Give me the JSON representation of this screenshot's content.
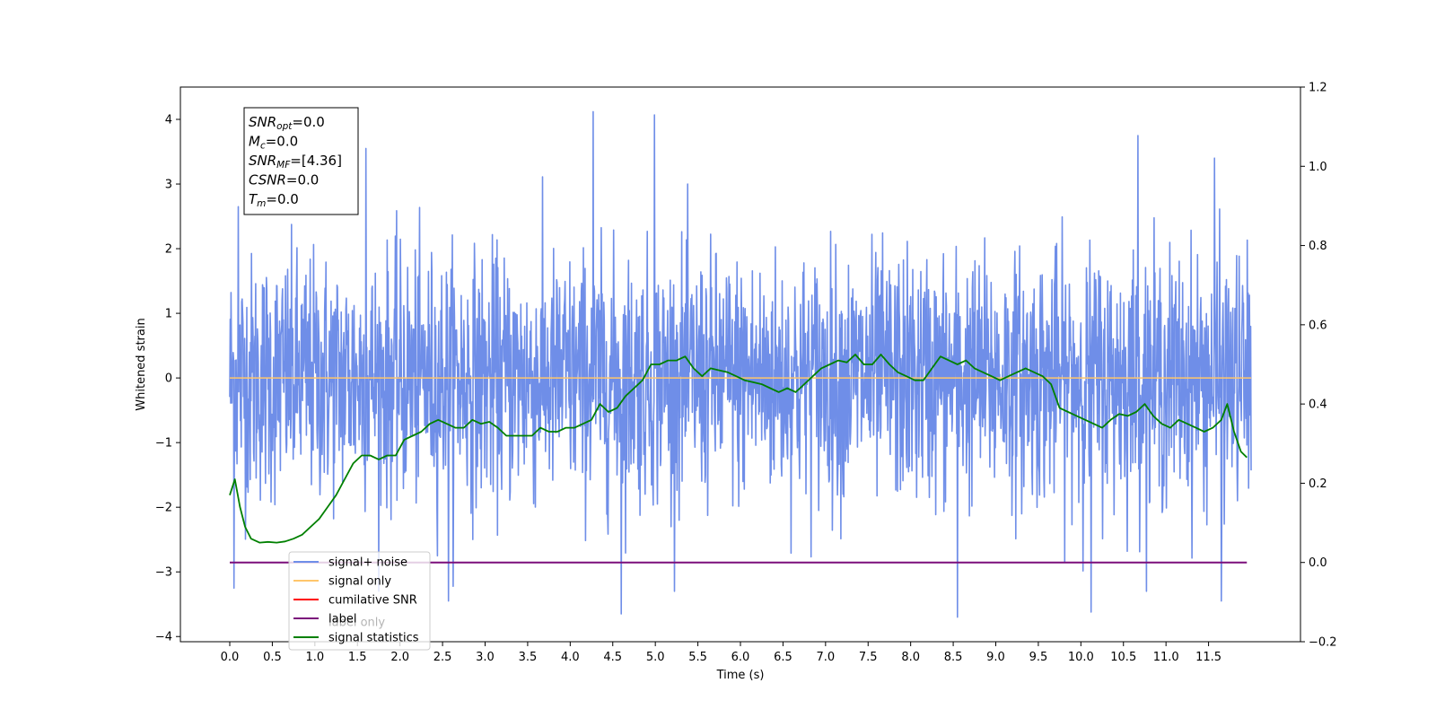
{
  "chart_data": {
    "type": "line",
    "title": "",
    "xlabel": "Time (s)",
    "ylabel": "Whitened strain",
    "y2label": "",
    "xlim": [
      -0.58,
      12.58
    ],
    "ylim": [
      -4.08,
      4.5
    ],
    "y2lim": [
      -0.2,
      1.2
    ],
    "x_ticks": [
      0.0,
      0.5,
      1.0,
      1.5,
      2.0,
      2.5,
      3.0,
      3.5,
      4.0,
      4.5,
      5.0,
      5.5,
      6.0,
      6.5,
      7.0,
      7.5,
      8.0,
      8.5,
      9.0,
      9.5,
      10.0,
      10.5,
      11.0,
      11.5
    ],
    "x_tick_labels": [
      "0.0",
      "0.5",
      "1.0",
      "1.5",
      "2.0",
      "2.5",
      "3.0",
      "3.5",
      "4.0",
      "4.5",
      "5.0",
      "5.5",
      "6.0",
      "6.5",
      "7.0",
      "7.5",
      "8.0",
      "8.5",
      "9.0",
      "9.5",
      "10.0",
      "10.5",
      "11.0",
      "11.5"
    ],
    "y_ticks": [
      -4,
      -3,
      -2,
      -1,
      0,
      1,
      2,
      3,
      4
    ],
    "y_tick_labels": [
      "−4",
      "−3",
      "−2",
      "−1",
      "0",
      "1",
      "2",
      "3",
      "4"
    ],
    "y2_ticks": [
      -0.2,
      0.0,
      0.2,
      0.4,
      0.6,
      0.8,
      1.0,
      1.2
    ],
    "y2_tick_labels": [
      "−0.2",
      "0.0",
      "0.2",
      "0.4",
      "0.6",
      "0.8",
      "1.0",
      "1.2"
    ],
    "grid": false,
    "legend_placement": "lower-left",
    "legend": [
      {
        "label": "signal+ noise",
        "color": "#6f8ee8"
      },
      {
        "label": "signal only",
        "color": "#ffc66b"
      },
      {
        "label": "cumilative SNR",
        "color": "#ff0000"
      },
      {
        "label": "label",
        "color": "#7b0f7b"
      },
      {
        "label": "signal statistics",
        "color": "#008000"
      }
    ],
    "hidden_legend_text": "label only",
    "annotation_box": [
      {
        "base": "SNR",
        "sub": "opt",
        "rest": "=0.0"
      },
      {
        "base": "M",
        "sub": "c",
        "rest": "=0.0"
      },
      {
        "base": "SNR",
        "sub": "MF",
        "rest": "=[4.36]"
      },
      {
        "base": "CSNR",
        "sub": "",
        "rest": "=0.0"
      },
      {
        "base": "T",
        "sub": "m",
        "rest": "=0.0"
      }
    ],
    "series": [
      {
        "name": "signal+ noise",
        "axis": "left",
        "color": "#6f8ee8",
        "x_range": [
          0.0,
          12.0
        ],
        "description_points": 2400,
        "typical_band": [
          -1.5,
          1.5
        ],
        "notable_peaks": [
          {
            "x": 4.27,
            "y": 4.12
          },
          {
            "x": 4.99,
            "y": 4.07
          },
          {
            "x": 10.67,
            "y": 3.75
          },
          {
            "x": 1.6,
            "y": 3.55
          },
          {
            "x": 0.1,
            "y": 2.65
          },
          {
            "x": 11.57,
            "y": 3.4
          },
          {
            "x": 8.55,
            "y": -3.7
          },
          {
            "x": 4.6,
            "y": -3.65
          },
          {
            "x": 10.12,
            "y": -3.62
          },
          {
            "x": 0.05,
            "y": -3.25
          },
          {
            "x": 2.57,
            "y": -3.45
          },
          {
            "x": 11.65,
            "y": -3.45
          }
        ]
      },
      {
        "name": "signal only",
        "axis": "left",
        "color": "#ffc66b",
        "x": [
          0.0,
          12.0
        ],
        "y": [
          0.0,
          0.0
        ]
      },
      {
        "name": "label",
        "axis": "right",
        "color": "#7b0f7b",
        "x": [
          0.0,
          11.95
        ],
        "y": [
          0.0,
          0.0
        ]
      },
      {
        "name": "signal statistics",
        "axis": "right",
        "color": "#008000",
        "x": [
          0.0,
          0.06,
          0.12,
          0.18,
          0.25,
          0.35,
          0.45,
          0.55,
          0.65,
          0.75,
          0.85,
          0.95,
          1.05,
          1.15,
          1.25,
          1.35,
          1.45,
          1.55,
          1.65,
          1.75,
          1.85,
          1.95,
          2.05,
          2.15,
          2.25,
          2.35,
          2.45,
          2.55,
          2.65,
          2.75,
          2.85,
          2.95,
          3.05,
          3.15,
          3.25,
          3.35,
          3.45,
          3.55,
          3.65,
          3.75,
          3.85,
          3.95,
          4.05,
          4.15,
          4.25,
          4.35,
          4.45,
          4.55,
          4.65,
          4.75,
          4.85,
          4.95,
          5.05,
          5.15,
          5.25,
          5.35,
          5.45,
          5.55,
          5.65,
          5.75,
          5.85,
          5.95,
          6.05,
          6.15,
          6.25,
          6.35,
          6.45,
          6.55,
          6.65,
          6.75,
          6.85,
          6.95,
          7.05,
          7.15,
          7.25,
          7.35,
          7.45,
          7.55,
          7.65,
          7.75,
          7.85,
          7.95,
          8.05,
          8.15,
          8.25,
          8.35,
          8.45,
          8.55,
          8.65,
          8.75,
          8.85,
          8.95,
          9.05,
          9.15,
          9.25,
          9.35,
          9.45,
          9.55,
          9.65,
          9.75,
          9.85,
          9.95,
          10.05,
          10.15,
          10.25,
          10.35,
          10.45,
          10.55,
          10.65,
          10.75,
          10.85,
          10.95,
          11.05,
          11.15,
          11.25,
          11.35,
          11.45,
          11.55,
          11.65,
          11.72,
          11.8,
          11.88,
          11.95
        ],
        "y": [
          0.17,
          0.21,
          0.14,
          0.09,
          0.06,
          0.05,
          0.052,
          0.05,
          0.053,
          0.06,
          0.07,
          0.09,
          0.11,
          0.14,
          0.17,
          0.21,
          0.25,
          0.27,
          0.27,
          0.26,
          0.27,
          0.27,
          0.31,
          0.32,
          0.33,
          0.35,
          0.36,
          0.35,
          0.34,
          0.34,
          0.36,
          0.35,
          0.355,
          0.34,
          0.32,
          0.32,
          0.32,
          0.32,
          0.34,
          0.33,
          0.33,
          0.34,
          0.34,
          0.35,
          0.36,
          0.4,
          0.38,
          0.39,
          0.42,
          0.44,
          0.46,
          0.5,
          0.5,
          0.51,
          0.51,
          0.52,
          0.49,
          0.47,
          0.49,
          0.485,
          0.48,
          0.47,
          0.46,
          0.455,
          0.45,
          0.44,
          0.43,
          0.44,
          0.43,
          0.45,
          0.47,
          0.49,
          0.5,
          0.51,
          0.505,
          0.525,
          0.5,
          0.5,
          0.525,
          0.5,
          0.48,
          0.47,
          0.46,
          0.46,
          0.49,
          0.52,
          0.51,
          0.5,
          0.51,
          0.49,
          0.48,
          0.47,
          0.46,
          0.47,
          0.48,
          0.49,
          0.48,
          0.47,
          0.45,
          0.39,
          0.38,
          0.37,
          0.36,
          0.35,
          0.34,
          0.36,
          0.375,
          0.37,
          0.38,
          0.4,
          0.37,
          0.35,
          0.34,
          0.36,
          0.35,
          0.34,
          0.33,
          0.34,
          0.36,
          0.4,
          0.33,
          0.28,
          0.265
        ]
      }
    ]
  }
}
